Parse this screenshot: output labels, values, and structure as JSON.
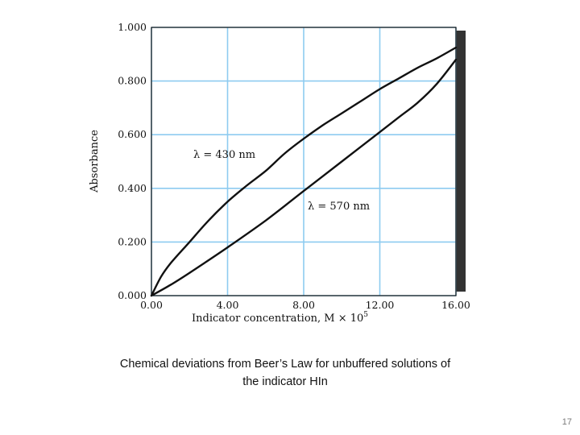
{
  "chart_data": {
    "type": "line",
    "xlabel_text": "Indicator concentration, M × 10",
    "xlabel_exponent": "5",
    "ylabel": "Absorbance",
    "xlim": [
      0,
      16
    ],
    "ylim": [
      0,
      1
    ],
    "x_ticks": [
      "0.00",
      "4.00",
      "8.00",
      "12.00",
      "16.00"
    ],
    "y_ticks": [
      "0.000",
      "0.200",
      "0.400",
      "0.600",
      "0.800",
      "1.000"
    ],
    "grid": true,
    "grid_color": "#8ecbf0",
    "line_color": "#111111",
    "series": [
      {
        "name": "λ = 430 nm",
        "x": [
          0,
          0.5,
          1,
          2,
          3,
          4,
          5,
          6,
          7,
          8,
          9,
          10,
          11,
          12,
          13,
          14,
          15,
          16
        ],
        "y": [
          0,
          0.07,
          0.12,
          0.2,
          0.28,
          0.35,
          0.41,
          0.465,
          0.53,
          0.585,
          0.635,
          0.68,
          0.725,
          0.77,
          0.81,
          0.85,
          0.885,
          0.925
        ]
      },
      {
        "name": "λ = 570 nm",
        "x": [
          0,
          1,
          2,
          4,
          6,
          8,
          10,
          12,
          13,
          14,
          15,
          16
        ],
        "y": [
          0,
          0.04,
          0.085,
          0.18,
          0.28,
          0.39,
          0.5,
          0.61,
          0.665,
          0.72,
          0.79,
          0.88
        ]
      }
    ]
  },
  "caption": {
    "line1": "Chemical deviations from Beer’s Law for unbuffered solutions of",
    "line2": "the indicator HIn"
  },
  "slide_number": "17"
}
